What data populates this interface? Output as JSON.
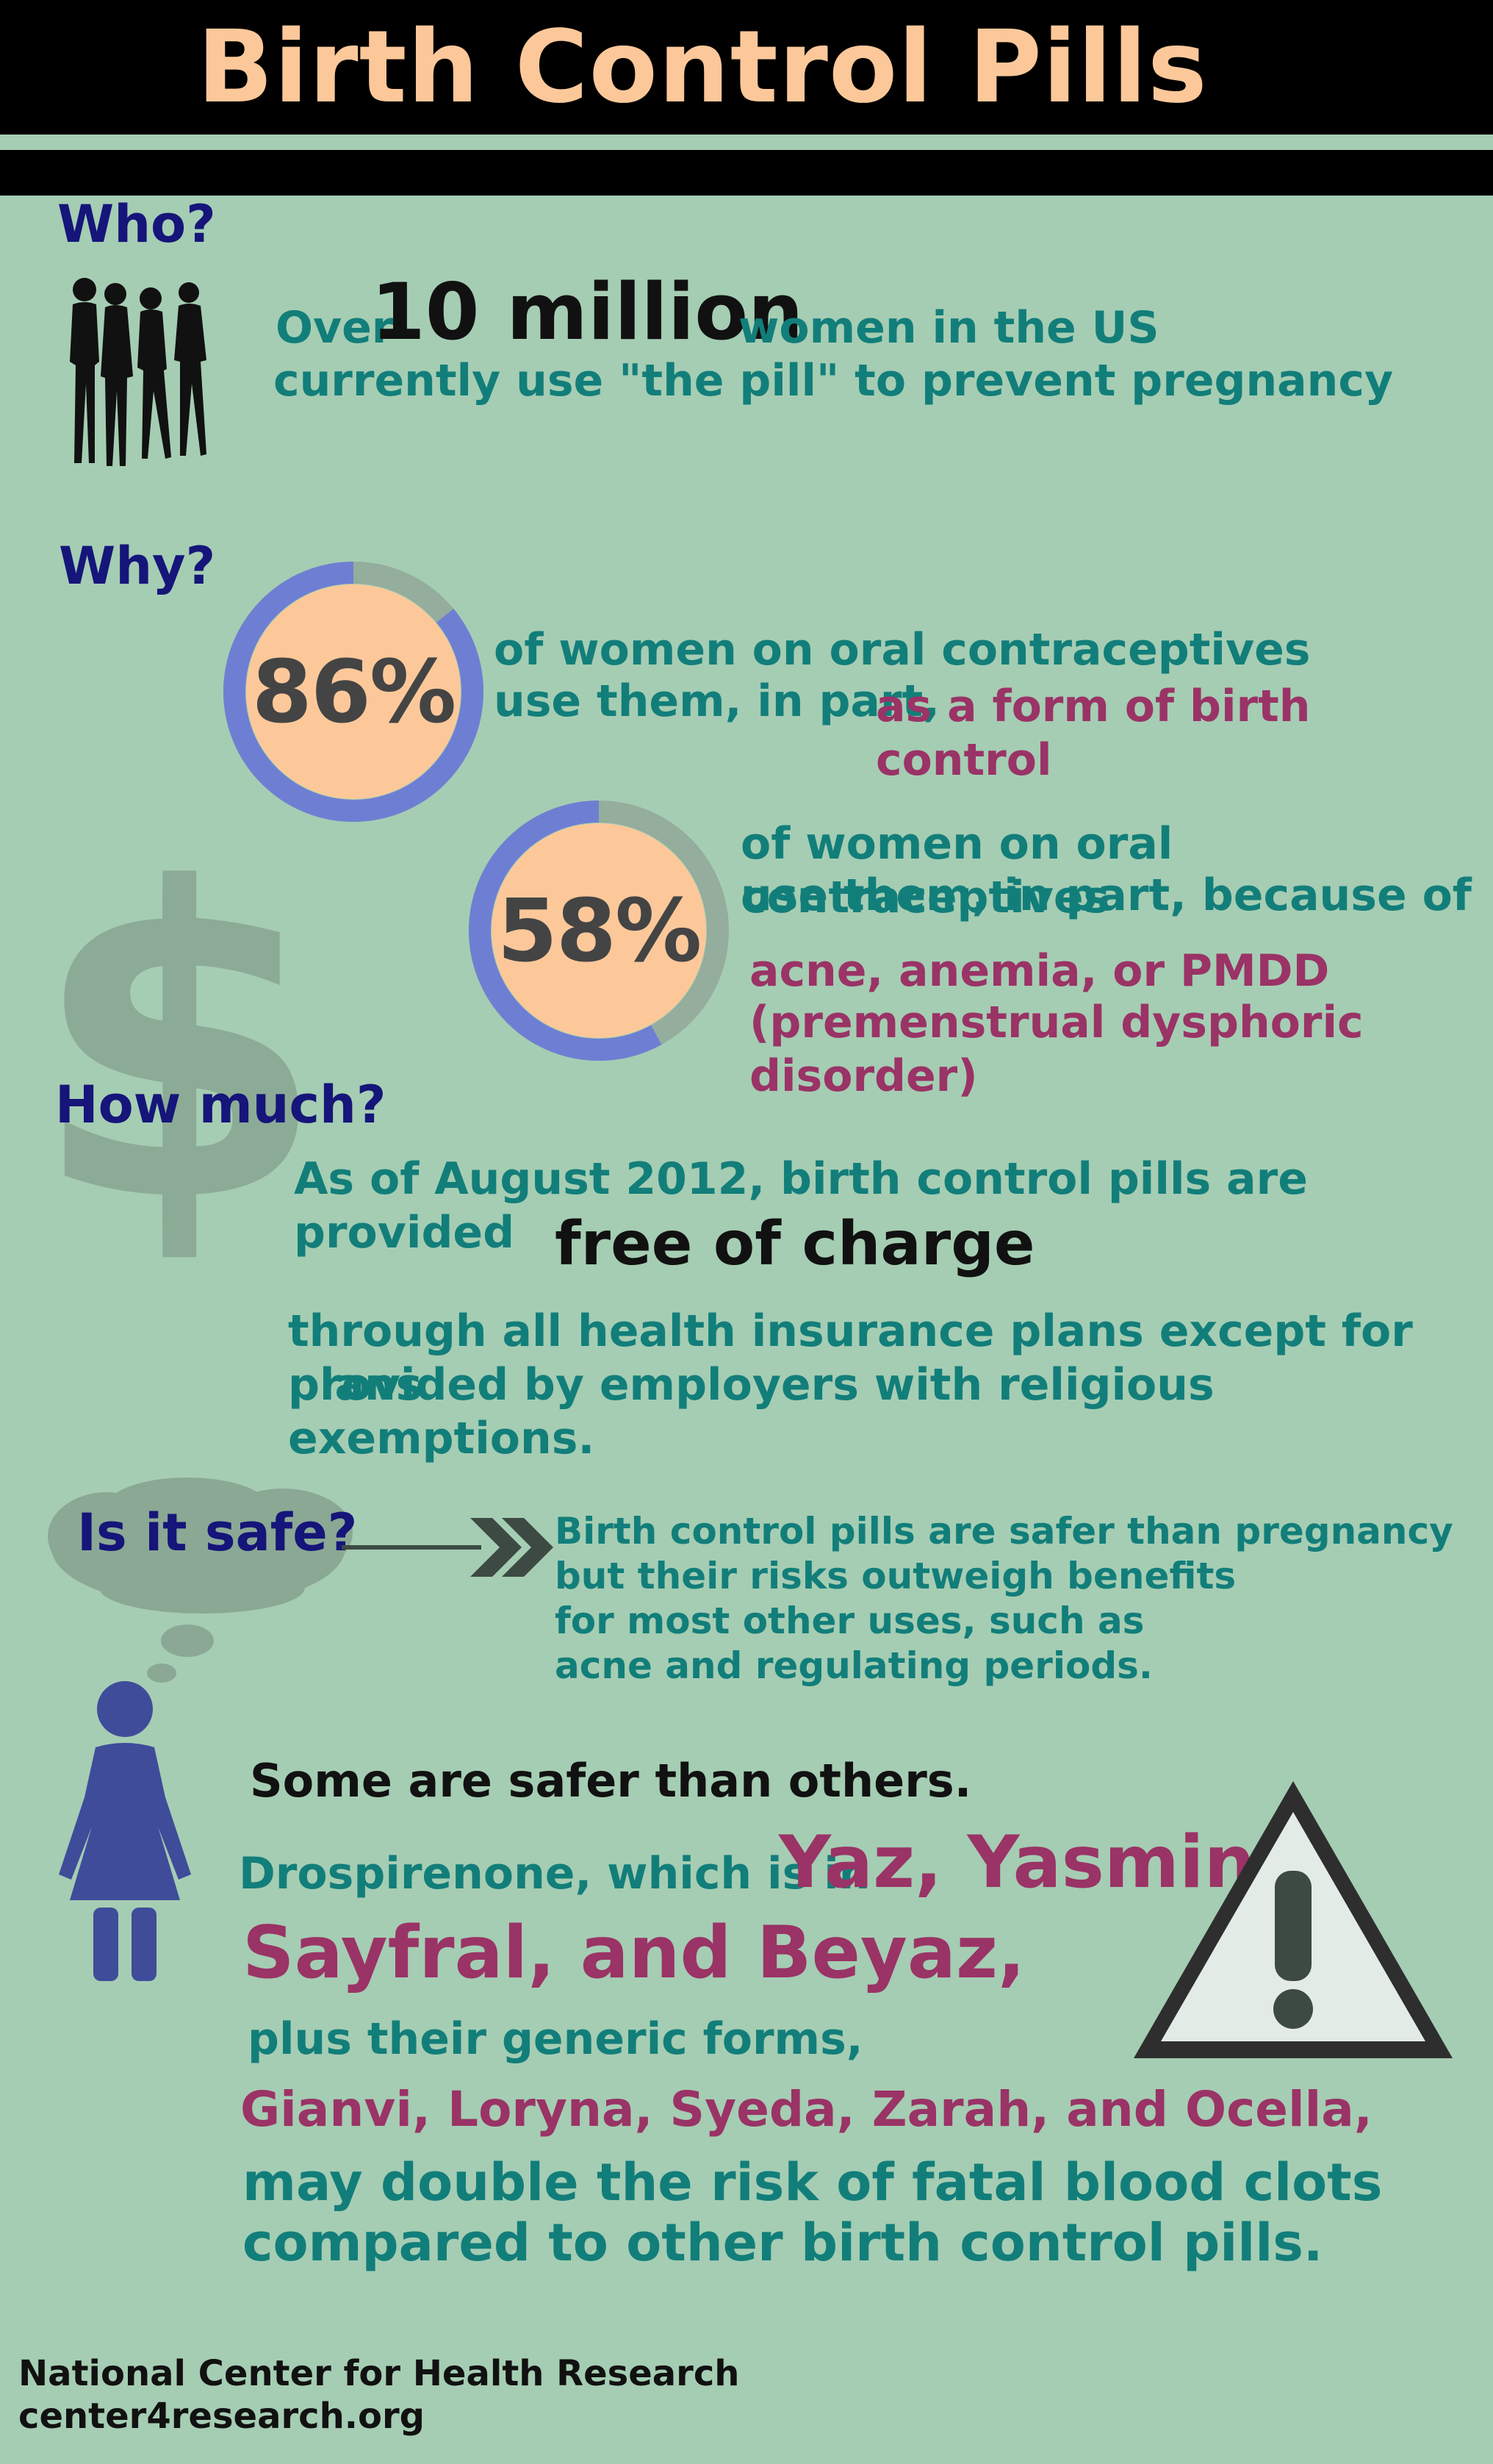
{
  "header": {
    "title": "Birth Control Pills"
  },
  "who": {
    "heading": "Who?",
    "over": "Over",
    "big_number": "10 million",
    "line1_rest": "women in the US",
    "line2": "currently use \"the pill\" to prevent pregnancy"
  },
  "why": {
    "heading": "Why?",
    "stat1": {
      "value": 86,
      "label": "86%",
      "line1": "of women on oral contraceptives",
      "line2": "use them, in part,",
      "highlight": "as a form of birth control"
    },
    "stat2": {
      "value": 58,
      "label": "58%",
      "line1": "of women on oral contraceptives",
      "line2": "use them, in part, because of",
      "highlight1": "acne, anemia, or PMDD",
      "highlight2": "(premenstrual dysphoric disorder)"
    }
  },
  "how_much": {
    "heading": "How much?",
    "line1": "As of August 2012, birth control pills are provided",
    "emphasis": "free of charge",
    "line2": "through all health insurance plans except for plans",
    "line3": "provided by employers with religious exemptions."
  },
  "safe": {
    "heading": "Is it safe?",
    "lines": [
      "Birth control pills are safer than pregnancy",
      "but their risks outweigh benefits",
      "for most other uses, such as",
      "acne and regulating periods."
    ],
    "some_safer": "Some are safer than others.",
    "drosp_prefix": "Drospirenone, which is in",
    "brands1": "Yaz, Yasmin,",
    "brands2": "Sayfral, and Beyaz,",
    "generic_intro": "plus their generic forms,",
    "generics": "Gianvi, Loryna, Syeda, Zarah, and Ocella,",
    "risk1": "may double the risk of fatal blood clots",
    "risk2": "compared to other birth control pills."
  },
  "footer": {
    "org": "National Center for Health Research",
    "url": "center4research.org"
  },
  "colors": {
    "background": "#a5cdb3",
    "title": "#fcc89a",
    "heading": "#15157a",
    "teal": "#127e7a",
    "plum": "#9a3366",
    "ring_fill": "#6e7fd3",
    "ring_track": "#94ad9c",
    "donut_center": "#fcc89a",
    "figure": "#3f4c9a"
  },
  "icons": [
    "women-silhouettes-icon",
    "dollar-icon",
    "thought-cloud-icon",
    "double-chevron-icon",
    "woman-icon",
    "warning-icon"
  ]
}
